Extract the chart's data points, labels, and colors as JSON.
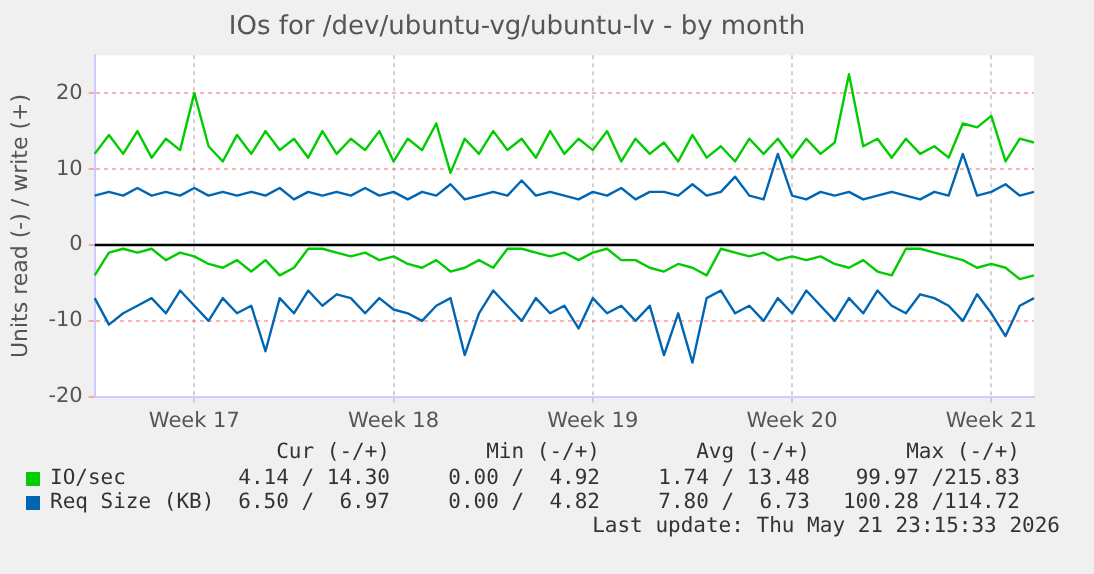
{
  "chart_data": {
    "type": "line",
    "title": "IOs for /dev/ubuntu-vg/ubuntu-lv - by month",
    "ylabel": "Units read (-) / write (+)",
    "categories": [
      null,
      null,
      null,
      null,
      null,
      null,
      null,
      "Week 17",
      null,
      null,
      null,
      null,
      null,
      null,
      null,
      null,
      null,
      null,
      null,
      null,
      null,
      "Week 18",
      null,
      null,
      null,
      null,
      null,
      null,
      null,
      null,
      null,
      null,
      null,
      null,
      null,
      "Week 19",
      null,
      null,
      null,
      null,
      null,
      null,
      null,
      null,
      null,
      null,
      null,
      null,
      null,
      "Week 20",
      null,
      null,
      null,
      null,
      null,
      null,
      null,
      null,
      null,
      null,
      null,
      null,
      null,
      "Week 21",
      null,
      null,
      null
    ],
    "ylim": [
      -20,
      25
    ],
    "yticks": [
      -20,
      -10,
      0,
      10,
      20
    ],
    "grid": true,
    "legend": "bottom",
    "marker": "none",
    "line_style": "solid",
    "ref_lines": [
      {
        "axis": "y",
        "value": 0,
        "color": "#000000"
      }
    ],
    "series": [
      {
        "name": "IO/sec",
        "color": "#00cc00",
        "values": [
          12,
          14.5,
          12,
          15,
          11.5,
          14,
          12.5,
          20,
          13,
          11,
          14.5,
          12,
          15,
          12.5,
          14,
          11.5,
          15,
          12,
          14,
          12.5,
          15,
          11,
          14,
          12.5,
          16,
          9.5,
          14,
          12,
          15,
          12.5,
          14,
          11.5,
          15,
          12,
          14,
          12.5,
          15,
          11,
          14,
          12,
          13.5,
          11,
          14.5,
          11.5,
          13,
          11,
          14,
          12,
          14,
          11.5,
          14,
          12,
          13.5,
          22.5,
          13,
          14,
          11.5,
          14,
          12,
          13,
          11.5,
          16,
          15.5,
          17,
          11,
          14,
          13.5
        ]
      },
      {
        "color": "#00cc00",
        "values": [
          -4,
          -1,
          -0.5,
          -1,
          -0.5,
          -2,
          -1,
          -1.5,
          -2.5,
          -3,
          -2,
          -3.5,
          -2,
          -4,
          -3,
          -0.5,
          -0.5,
          -1,
          -1.5,
          -1,
          -2,
          -1.5,
          -2.5,
          -3,
          -2,
          -3.5,
          -3,
          -2,
          -3,
          -0.5,
          -0.5,
          -1,
          -1.5,
          -1,
          -2,
          -1,
          -0.5,
          -2,
          -2,
          -3,
          -3.5,
          -2.5,
          -3,
          -4,
          -0.5,
          -1,
          -1.5,
          -1,
          -2,
          -1.5,
          -2,
          -1.5,
          -2.5,
          -3,
          -2,
          -3.5,
          -4,
          -0.5,
          -0.5,
          -1,
          -1.5,
          -2,
          -3,
          -2.5,
          -3,
          -4.5,
          -4
        ]
      },
      {
        "name": "Req Size (KB)",
        "color": "#0066b3",
        "values": [
          6.5,
          7,
          6.5,
          7.5,
          6.5,
          7,
          6.5,
          7.5,
          6.5,
          7,
          6.5,
          7,
          6.5,
          7.5,
          6,
          7,
          6.5,
          7,
          6.5,
          7.5,
          6.5,
          7,
          6,
          7,
          6.5,
          8,
          6,
          6.5,
          7,
          6.5,
          8.5,
          6.5,
          7,
          6.5,
          6,
          7,
          6.5,
          7.5,
          6,
          7,
          7,
          6.5,
          8,
          6.5,
          7,
          9,
          6.5,
          6,
          12,
          6.5,
          6,
          7,
          6.5,
          7,
          6,
          6.5,
          7,
          6.5,
          6,
          7,
          6.5,
          12,
          6.5,
          7,
          8,
          6.5,
          7
        ]
      },
      {
        "color": "#0066b3",
        "values": [
          -7,
          -10.5,
          -9,
          -8,
          -7,
          -9,
          -6,
          -8,
          -10,
          -7,
          -9,
          -8,
          -14,
          -7,
          -9,
          -6,
          -8,
          -6.5,
          -7,
          -9,
          -7,
          -8.5,
          -9,
          -10,
          -8,
          -7,
          -14.5,
          -9,
          -6,
          -8,
          -10,
          -7,
          -9,
          -8,
          -11,
          -7,
          -9,
          -8,
          -10,
          -8,
          -14.5,
          -9,
          -15.5,
          -7,
          -6,
          -9,
          -8,
          -10,
          -7,
          -9,
          -6,
          -8,
          -10,
          -7,
          -9,
          -6,
          -8,
          -9,
          -6.5,
          -7,
          -8,
          -10,
          -6.5,
          -9,
          -12,
          -8,
          -7
        ]
      }
    ],
    "annotations": [
      "Cur (-/+)",
      "Min (-/+)",
      "Avg (-/+)",
      "Max (-/+)",
      "4.14 / 14.30",
      "0.00 /  4.92",
      "1.74 / 13.48",
      "99.97 /215.83",
      "6.50 /  6.97",
      "0.00 /  4.82",
      "7.80 /  6.73",
      "100.28 /114.72",
      "Last update: Thu May 21 23:15:33 2026"
    ]
  }
}
